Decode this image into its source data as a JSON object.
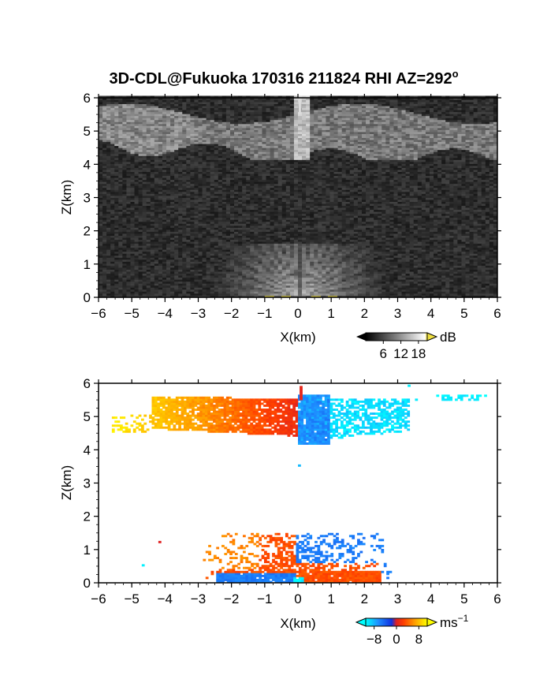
{
  "title": "3D-CDL@Fukuoka 170316 211824 RHI AZ=292",
  "title_degree": "o",
  "chart_data": [
    {
      "type": "heatmap",
      "quantity": "echo intensity",
      "xlabel": "X(km)",
      "ylabel": "Z(km)",
      "xlim": [
        -6,
        6
      ],
      "ylim": [
        0,
        6
      ],
      "xticks": [
        -6,
        -5,
        -4,
        -3,
        -2,
        -1,
        0,
        1,
        2,
        3,
        4,
        5,
        6
      ],
      "yticks": [
        0,
        1,
        2,
        3,
        4,
        5,
        6
      ],
      "grid": false,
      "colormap": "gray",
      "colorbar": {
        "unit": "dB",
        "ticks": [
          6,
          12,
          18
        ],
        "range": [
          0,
          21
        ],
        "low_color": "#000000",
        "high_color": "#f0e040"
      },
      "features": [
        {
          "label": "cloud layer",
          "x_range": [
            -6,
            6
          ],
          "z_range": [
            4.1,
            5.8
          ],
          "value": 12
        },
        {
          "label": "vertical streak",
          "x_range": [
            -0.15,
            0.3
          ],
          "z_range": [
            4.1,
            6.0
          ],
          "value": 16
        },
        {
          "label": "near-ground fan",
          "x_range": [
            -2.5,
            2.5
          ],
          "z_range": [
            0,
            1.6
          ],
          "value": 14
        }
      ]
    },
    {
      "type": "heatmap",
      "quantity": "Doppler velocity",
      "xlabel": "X(km)",
      "ylabel": "Z(km)",
      "xlim": [
        -6,
        6
      ],
      "ylim": [
        0,
        6
      ],
      "xticks": [
        -6,
        -5,
        -4,
        -3,
        -2,
        -1,
        0,
        1,
        2,
        3,
        4,
        5,
        6
      ],
      "yticks": [
        0,
        1,
        2,
        3,
        4,
        5,
        6
      ],
      "grid": false,
      "colormap": "cyan-blue-red-orange-yellow",
      "colorbar": {
        "unit": "ms",
        "unit_exponent": "−1",
        "ticks": [
          -8,
          0,
          8
        ],
        "tick_labels": [
          "−8",
          "0",
          "8"
        ],
        "range": [
          -11,
          11
        ]
      },
      "features": [
        {
          "label": "upper layer positive",
          "x_range": [
            -4.4,
            -0.1
          ],
          "z_range": [
            4.2,
            5.5
          ],
          "value_range": [
            1,
            8
          ]
        },
        {
          "label": "upper layer negative",
          "x_range": [
            0,
            3.2
          ],
          "z_range": [
            4.1,
            5.6
          ],
          "value_range": [
            -9,
            -2
          ]
        },
        {
          "label": "low layer negative",
          "x_range": [
            -2.5,
            1.3
          ],
          "z_range": [
            0,
            1.5
          ],
          "value": -6
        },
        {
          "label": "low layer positive",
          "x_range": [
            -3,
            2.8
          ],
          "z_range": [
            0,
            1.5
          ],
          "value": 3
        }
      ]
    }
  ]
}
